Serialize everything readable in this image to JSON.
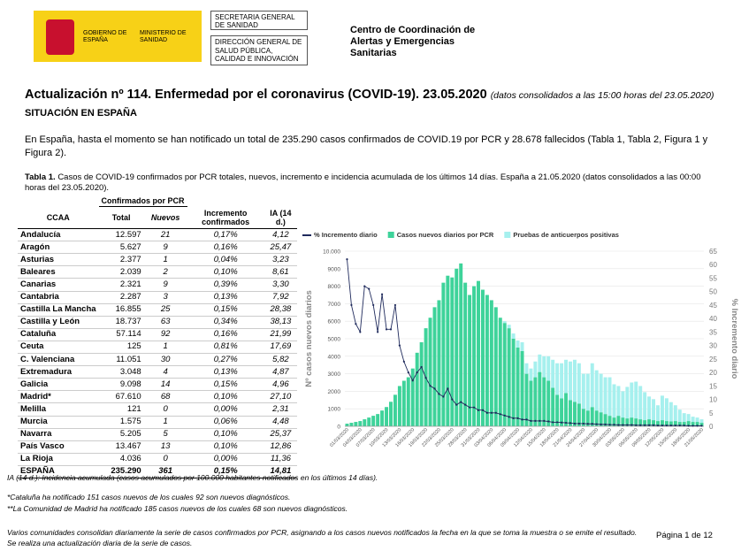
{
  "header": {
    "logo_left": "GOBIERNO DE ESPAÑA",
    "logo_right": "MINISTERIO DE SANIDAD",
    "box1": "SECRETARIA GENERAL DE SANIDAD",
    "box2": "DIRECCIÓN GENERAL DE SALUD PÚBLICA, CALIDAD E INNOVACIÓN",
    "center": "Centro de Coordinación de Alertas y Emergencias Sanitarias"
  },
  "title": "Actualización nº 114. Enfermedad por el coronavirus (COVID-19). 23.05.2020",
  "title_note": "(datos consolidados a las 15:00 horas del 23.05.2020)",
  "section": "SITUACIÓN EN ESPAÑA",
  "intro": "En España, hasta el momento se han notificado un total de 235.290 casos confirmados de COVID.19 por PCR y 28.678 fallecidos (Tabla 1, Tabla 2, Figura 1 y Figura 2).",
  "table": {
    "caption_bold": "Tabla 1.",
    "caption": "Casos de COVID-19 confirmados por PCR totales, nuevos, incremento e incidencia acumulada de los últimos 14 días. España a 21.05.2020 (datos consolidados a las 00:00 horas del 23.05.2020).",
    "group": "Confirmados por PCR",
    "columns": [
      "CCAA",
      "Total",
      "Nuevos",
      "Incremento confirmados",
      "IA (14 d.)"
    ],
    "rows": [
      [
        "Andalucía",
        "12.597",
        "21",
        "0,17%",
        "4,12"
      ],
      [
        "Aragón",
        "5.627",
        "9",
        "0,16%",
        "25,47"
      ],
      [
        "Asturias",
        "2.377",
        "1",
        "0,04%",
        "3,23"
      ],
      [
        "Baleares",
        "2.039",
        "2",
        "0,10%",
        "8,61"
      ],
      [
        "Canarias",
        "2.321",
        "9",
        "0,39%",
        "3,30"
      ],
      [
        "Cantabria",
        "2.287",
        "3",
        "0,13%",
        "7,92"
      ],
      [
        "Castilla La Mancha",
        "16.855",
        "25",
        "0,15%",
        "28,38"
      ],
      [
        "Castilla y León",
        "18.737",
        "63",
        "0,34%",
        "38,13"
      ],
      [
        "Cataluña",
        "57.114",
        "92",
        "0,16%",
        "21,99"
      ],
      [
        "Ceuta",
        "125",
        "1",
        "0,81%",
        "17,69"
      ],
      [
        "C. Valenciana",
        "11.051",
        "30",
        "0,27%",
        "5,82"
      ],
      [
        "Extremadura",
        "3.048",
        "4",
        "0,13%",
        "4,87"
      ],
      [
        "Galicia",
        "9.098",
        "14",
        "0,15%",
        "4,96"
      ],
      [
        "Madrid*",
        "67.610",
        "68",
        "0,10%",
        "27,10"
      ],
      [
        "Melilla",
        "121",
        "0",
        "0,00%",
        "2,31"
      ],
      [
        "Murcia",
        "1.575",
        "1",
        "0,06%",
        "4,48"
      ],
      [
        "Navarra",
        "5.205",
        "5",
        "0,10%",
        "25,37"
      ],
      [
        "País Vasco",
        "13.467",
        "13",
        "0,10%",
        "12,86"
      ],
      [
        "La Rioja",
        "4.036",
        "0",
        "0,00%",
        "11,36"
      ]
    ],
    "total": [
      "ESPAÑA",
      "235.290",
      "361",
      "0,15%",
      "14,81"
    ]
  },
  "notes": [
    "IA (14 d.): Incidencia acumulada (casos acumulados por 100.000 habitantes notificados en los últimos 14 días).",
    "*Cataluña ha notificado 151 casos nuevos de los cuales 92 son nuevos diagnósticos.",
    "**La Comunidad de Madrid ha notificado 185 casos nuevos de los cuales 68 son nuevos diagnósticos."
  ],
  "footer": "Varios comunidades consolidan diariamente la serie de casos confirmados por PCR, asignando a los casos nuevos notificados la fecha en la que se toma la muestra o se emite el resultado. Se realiza una actualización diaria de la serie de casos.",
  "page": "Página 1 de 12",
  "chart": {
    "type": "bar",
    "ylabel": "Nº casos nuevos diarios",
    "y2label": "% Incremento diario",
    "categories": [
      "01/03/2020",
      null,
      null,
      "04/03/2020",
      null,
      null,
      "07/03/2020",
      null,
      null,
      "10/03/2020",
      null,
      null,
      "13/03/2020",
      null,
      null,
      "16/03/2020",
      null,
      null,
      "19/03/2020",
      null,
      null,
      "22/03/2020",
      null,
      null,
      "25/03/2020",
      null,
      null,
      "28/03/2020",
      null,
      null,
      "31/03/2020",
      null,
      null,
      "03/04/2020",
      null,
      null,
      "06/04/2020",
      null,
      null,
      "09/04/2020",
      null,
      null,
      "12/04/2020",
      null,
      null,
      "15/04/2020",
      null,
      null,
      "18/04/2020",
      null,
      null,
      "21/04/2020",
      null,
      null,
      "24/04/2020",
      null,
      null,
      "27/04/2020",
      null,
      null,
      "30/04/2020",
      null,
      null,
      "03/05/2020",
      null,
      null,
      "06/05/2020",
      null,
      null,
      "09/05/2020",
      null,
      null,
      "12/05/2020",
      null,
      null,
      "15/05/2020",
      null,
      null,
      "18/05/2020",
      null,
      null,
      "21/05/2020"
    ],
    "series": [
      {
        "name": "% Incremento diario",
        "color": "#1f2a5c",
        "axis": "y2",
        "values": [
          62,
          45,
          38,
          35,
          52,
          51,
          45,
          35,
          49,
          36,
          36,
          45,
          30,
          24,
          20,
          17,
          20,
          22,
          18,
          15,
          14,
          12,
          11,
          14,
          10,
          8,
          9,
          8,
          7,
          7,
          6,
          6,
          5,
          5,
          5,
          4.5,
          4,
          3.5,
          3,
          3,
          2.5,
          2.5,
          2,
          2,
          2,
          2,
          1.8,
          1.5,
          1.5,
          1.4,
          1.3,
          1.2,
          1,
          1,
          1,
          0.9,
          0.9,
          0.8,
          0.7,
          0.7,
          0.6,
          0.6,
          0.5,
          0.5,
          0.5,
          0.5,
          0.4,
          0.4,
          0.4,
          0.4,
          0.4,
          0.3,
          0.3,
          0.3,
          0.3,
          0.3,
          0.3,
          0.3,
          0.2,
          0.2,
          0.2,
          0.2
        ]
      },
      {
        "name": "Casos nuevos diarios por PCR",
        "color": "#3ed39a",
        "values": [
          150,
          200,
          250,
          300,
          400,
          500,
          600,
          700,
          900,
          1100,
          1400,
          1800,
          2300,
          2600,
          2800,
          3300,
          4200,
          4800,
          5600,
          6200,
          6800,
          7200,
          8200,
          8600,
          8500,
          9000,
          9300,
          8200,
          7500,
          8000,
          8300,
          7800,
          7500,
          7200,
          6800,
          6200,
          5900,
          5600,
          5000,
          4500,
          4300,
          3000,
          2600,
          2800,
          3100,
          2800,
          2600,
          2200,
          1800,
          1600,
          1900,
          1500,
          1400,
          1300,
          1000,
          900,
          1100,
          900,
          800,
          700,
          600,
          500,
          600,
          500,
          450,
          500,
          450,
          400,
          350,
          400,
          350,
          300,
          350,
          300,
          280,
          300,
          250,
          250,
          300,
          250,
          250,
          200
        ]
      },
      {
        "name": "Pruebas de anticuerpos positivas",
        "color": "#a6f0ee",
        "values": [
          0,
          0,
          0,
          0,
          0,
          0,
          0,
          0,
          0,
          0,
          0,
          0,
          0,
          0,
          0,
          0,
          0,
          0,
          0,
          0,
          0,
          0,
          0,
          0,
          0,
          0,
          0,
          0,
          0,
          0,
          0,
          0,
          0,
          0,
          0,
          0,
          100,
          200,
          300,
          400,
          500,
          600,
          700,
          900,
          1000,
          1200,
          1400,
          1600,
          1800,
          2000,
          1900,
          2200,
          2400,
          2300,
          2000,
          2100,
          2500,
          2300,
          2200,
          2100,
          2200,
          1900,
          1700,
          1500,
          1800,
          2000,
          2100,
          1900,
          1600,
          1300,
          1200,
          900,
          1400,
          1300,
          1100,
          900,
          700,
          500,
          400,
          300,
          250,
          200
        ]
      }
    ],
    "ylim": [
      0,
      10000
    ],
    "yticks": [
      0,
      1000,
      2000,
      3000,
      4000,
      5000,
      6000,
      7000,
      8000,
      9000,
      {
        "value": 10000,
        "label": "10.000"
      }
    ],
    "y2lim": [
      0,
      65
    ],
    "y2ticks": [
      0,
      5,
      10,
      15,
      20,
      25,
      30,
      35,
      40,
      45,
      50,
      55,
      60,
      65
    ],
    "grid": true
  }
}
